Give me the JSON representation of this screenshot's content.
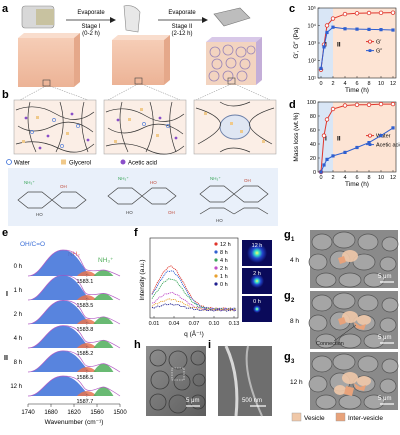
{
  "panel_letters": {
    "a": "a",
    "b": "b",
    "c": "c",
    "d": "d",
    "e": "e",
    "f": "f",
    "g1": "g",
    "g1_sub": "1",
    "g2": "g",
    "g2_sub": "2",
    "g3": "g",
    "g3_sub": "3",
    "h": "h",
    "i": "i"
  },
  "panel_a": {
    "evaporate1": "Evaporate",
    "stage1": "Stage I",
    "stage1_time": "(0-2 h)",
    "evaporate2": "Evaporate",
    "stage2": "Stage II",
    "stage2_time": "(2-12 h)"
  },
  "panel_b": {
    "legend_water": "Water",
    "legend_glycerol": "Glycerol",
    "legend_acetic": "Acetic acid"
  },
  "panel_e": {
    "xlabel": "Wavenumber (cm⁻¹)",
    "label_ohco": "OH/C=O",
    "label_nh2": "NH₂",
    "label_nh3": "NH₃⁺",
    "stage_I": "I",
    "stage_II": "II",
    "xticks": [
      "1740",
      "1680",
      "1620",
      "1560",
      "1500"
    ],
    "rows": [
      {
        "time": "0 h",
        "peak": "1583.1"
      },
      {
        "time": "1 h",
        "peak": "1583.5"
      },
      {
        "time": "2 h",
        "peak": "1583.8"
      },
      {
        "time": "4 h",
        "peak": "1585.2"
      },
      {
        "time": "8 h",
        "peak": "1586.5"
      },
      {
        "time": "12 h",
        "peak": "1587.7"
      }
    ],
    "colors": {
      "blue": "#3b6fd8",
      "orange": "#e8734f",
      "green": "#4fae5a",
      "purple": "#b35cc4"
    }
  },
  "panel_f": {
    "ylabel": "Intensity (a.u.)",
    "xlabel": "q (Å⁻¹)",
    "xticks": [
      "0.01",
      "0.04",
      "0.07",
      "0.10",
      "0.13"
    ],
    "legend": [
      "12 h",
      "8 h",
      "4 h",
      "2 h",
      "1 h",
      "0 h"
    ],
    "legend_colors": [
      "#e0352b",
      "#2f5fd0",
      "#3aa65a",
      "#c04bc8",
      "#e8a02f",
      "#1f1f8f"
    ],
    "saxs": [
      "12 h",
      "2 h",
      "0 h"
    ]
  },
  "panel_h": {
    "scale": "5 μm"
  },
  "panel_i": {
    "scale": "500 nm"
  },
  "panel_g": {
    "rows": [
      {
        "time": "4 h",
        "scale": "5 μm"
      },
      {
        "time": "8 h",
        "scale": "5 μm",
        "note": "Connection"
      },
      {
        "time": "12 h",
        "scale": "5 μm"
      }
    ],
    "legend_vesicle": "Vesicle",
    "legend_inter": "Inter-vesicle",
    "vesicle_color": "#f0c8a8",
    "inter_color": "#e8a27a"
  },
  "chart_data": [
    {
      "type": "line",
      "panel": "c",
      "ylabel": "G′, G″ (Pa)",
      "xlabel": "Time (h)",
      "yscale": "log",
      "ylim": [
        10,
        100000
      ],
      "xlim": [
        -0.5,
        12.5
      ],
      "xticks": [
        0,
        2,
        4,
        6,
        8,
        10,
        12
      ],
      "yticklabels": [
        "10¹",
        "10²",
        "10³",
        "10⁴",
        "10⁵"
      ],
      "x": [
        0,
        0.5,
        1,
        2,
        4,
        6,
        8,
        10,
        12
      ],
      "stage_labels": [
        "I",
        "II"
      ],
      "series": [
        {
          "name": "G′",
          "color": "#e0352b",
          "values": [
            30,
            800,
            10000,
            25000,
            45000,
            50000,
            52000,
            53000,
            54000
          ]
        },
        {
          "name": "G″",
          "color": "#2f5fd0",
          "values": [
            35,
            600,
            4000,
            8000,
            6500,
            6200,
            6000,
            5800,
            5500
          ]
        }
      ]
    },
    {
      "type": "line",
      "panel": "d",
      "ylabel": "Mass loss (wt.%)",
      "xlabel": "Time (h)",
      "ylim": [
        0,
        100
      ],
      "xlim": [
        -0.5,
        12.5
      ],
      "xticks": [
        0,
        2,
        4,
        6,
        8,
        10,
        12
      ],
      "yticks": [
        0,
        20,
        40,
        60,
        80,
        100
      ],
      "x": [
        0,
        0.5,
        1,
        2,
        4,
        6,
        8,
        10,
        12
      ],
      "stage_labels": [
        "I",
        "II"
      ],
      "series": [
        {
          "name": "Water",
          "color": "#e0352b",
          "values": [
            0,
            52,
            75,
            90,
            95,
            96,
            96,
            97,
            97
          ]
        },
        {
          "name": "Acetic acid",
          "color": "#2f5fd0",
          "values": [
            0,
            10,
            18,
            23,
            28,
            35,
            42,
            52,
            63
          ]
        }
      ]
    }
  ]
}
